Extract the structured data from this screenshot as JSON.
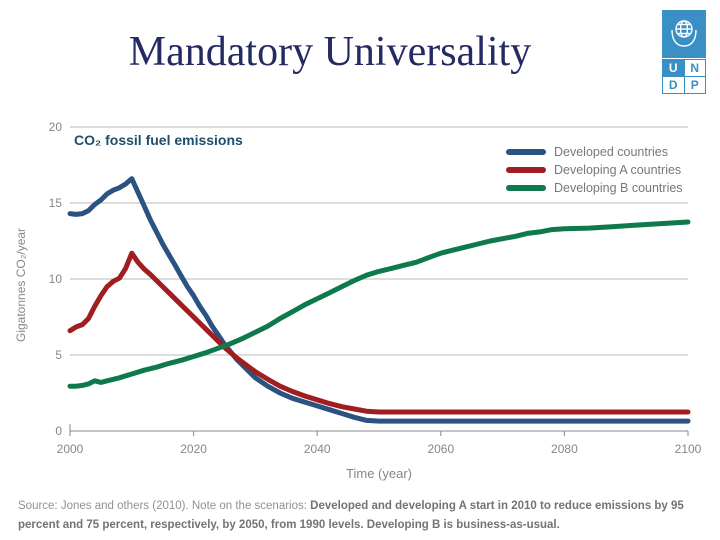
{
  "slide": {
    "title": "Mandatory Universality"
  },
  "logo": {
    "letters": [
      "U",
      "N",
      "D",
      "P"
    ],
    "color": "#3a8fc4"
  },
  "chart_data": {
    "type": "line",
    "title": "CO₂ fossil fuel emissions",
    "xlabel": "Time (year)",
    "ylabel": "Gigatonnes CO₂/year",
    "xlim": [
      2000,
      2100
    ],
    "ylim": [
      0,
      20
    ],
    "xticks": [
      2000,
      2020,
      2040,
      2060,
      2080,
      2100
    ],
    "yticks": [
      0,
      5,
      10,
      15,
      20
    ],
    "grid": true,
    "legend_position": "top-right",
    "series": [
      {
        "name": "Developed countries",
        "color": "#2a5382",
        "points": [
          [
            2000,
            14.3
          ],
          [
            2001,
            14.25
          ],
          [
            2002,
            14.3
          ],
          [
            2003,
            14.5
          ],
          [
            2004,
            14.9
          ],
          [
            2005,
            15.2
          ],
          [
            2006,
            15.6
          ],
          [
            2007,
            15.85
          ],
          [
            2008,
            16.0
          ],
          [
            2009,
            16.25
          ],
          [
            2010,
            16.6
          ],
          [
            2011,
            15.7
          ],
          [
            2012,
            14.8
          ],
          [
            2013,
            13.9
          ],
          [
            2014,
            13.1
          ],
          [
            2015,
            12.3
          ],
          [
            2016,
            11.6
          ],
          [
            2017,
            10.9
          ],
          [
            2018,
            10.2
          ],
          [
            2019,
            9.5
          ],
          [
            2020,
            8.9
          ],
          [
            2021,
            8.2
          ],
          [
            2022,
            7.6
          ],
          [
            2023,
            6.9
          ],
          [
            2024,
            6.3
          ],
          [
            2025,
            5.7
          ],
          [
            2026,
            5.2
          ],
          [
            2027,
            4.7
          ],
          [
            2028,
            4.3
          ],
          [
            2029,
            3.9
          ],
          [
            2030,
            3.5
          ],
          [
            2032,
            2.95
          ],
          [
            2034,
            2.5
          ],
          [
            2036,
            2.15
          ],
          [
            2038,
            1.9
          ],
          [
            2040,
            1.65
          ],
          [
            2042,
            1.4
          ],
          [
            2044,
            1.15
          ],
          [
            2046,
            0.9
          ],
          [
            2048,
            0.7
          ],
          [
            2050,
            0.65
          ],
          [
            2060,
            0.65
          ],
          [
            2070,
            0.65
          ],
          [
            2080,
            0.65
          ],
          [
            2090,
            0.65
          ],
          [
            2100,
            0.65
          ]
        ]
      },
      {
        "name": "Developing A countries",
        "color": "#a01d20",
        "points": [
          [
            2000,
            6.6
          ],
          [
            2001,
            6.85
          ],
          [
            2002,
            7.0
          ],
          [
            2003,
            7.4
          ],
          [
            2004,
            8.2
          ],
          [
            2005,
            8.9
          ],
          [
            2006,
            9.5
          ],
          [
            2007,
            9.85
          ],
          [
            2008,
            10.05
          ],
          [
            2009,
            10.7
          ],
          [
            2010,
            11.7
          ],
          [
            2011,
            11.1
          ],
          [
            2012,
            10.65
          ],
          [
            2013,
            10.3
          ],
          [
            2014,
            9.9
          ],
          [
            2015,
            9.5
          ],
          [
            2016,
            9.1
          ],
          [
            2017,
            8.7
          ],
          [
            2018,
            8.3
          ],
          [
            2019,
            7.9
          ],
          [
            2020,
            7.5
          ],
          [
            2021,
            7.1
          ],
          [
            2022,
            6.7
          ],
          [
            2023,
            6.3
          ],
          [
            2024,
            5.9
          ],
          [
            2025,
            5.5
          ],
          [
            2026,
            5.15
          ],
          [
            2027,
            4.8
          ],
          [
            2028,
            4.5
          ],
          [
            2029,
            4.2
          ],
          [
            2030,
            3.9
          ],
          [
            2032,
            3.4
          ],
          [
            2034,
            2.95
          ],
          [
            2036,
            2.6
          ],
          [
            2038,
            2.3
          ],
          [
            2040,
            2.05
          ],
          [
            2042,
            1.8
          ],
          [
            2044,
            1.6
          ],
          [
            2046,
            1.45
          ],
          [
            2048,
            1.3
          ],
          [
            2050,
            1.25
          ],
          [
            2060,
            1.25
          ],
          [
            2070,
            1.25
          ],
          [
            2080,
            1.25
          ],
          [
            2090,
            1.25
          ],
          [
            2100,
            1.25
          ]
        ]
      },
      {
        "name": "Developing B countries",
        "color": "#0e7a4c",
        "points": [
          [
            2000,
            2.95
          ],
          [
            2001,
            2.95
          ],
          [
            2002,
            3.0
          ],
          [
            2003,
            3.1
          ],
          [
            2004,
            3.3
          ],
          [
            2005,
            3.2
          ],
          [
            2006,
            3.3
          ],
          [
            2007,
            3.4
          ],
          [
            2008,
            3.5
          ],
          [
            2010,
            3.75
          ],
          [
            2012,
            4.0
          ],
          [
            2014,
            4.2
          ],
          [
            2016,
            4.45
          ],
          [
            2018,
            4.65
          ],
          [
            2020,
            4.9
          ],
          [
            2022,
            5.15
          ],
          [
            2024,
            5.45
          ],
          [
            2026,
            5.75
          ],
          [
            2028,
            6.1
          ],
          [
            2030,
            6.5
          ],
          [
            2032,
            6.9
          ],
          [
            2034,
            7.4
          ],
          [
            2036,
            7.85
          ],
          [
            2038,
            8.3
          ],
          [
            2040,
            8.7
          ],
          [
            2042,
            9.1
          ],
          [
            2044,
            9.5
          ],
          [
            2046,
            9.9
          ],
          [
            2048,
            10.25
          ],
          [
            2050,
            10.5
          ],
          [
            2052,
            10.7
          ],
          [
            2054,
            10.9
          ],
          [
            2056,
            11.1
          ],
          [
            2058,
            11.4
          ],
          [
            2060,
            11.7
          ],
          [
            2062,
            11.9
          ],
          [
            2064,
            12.1
          ],
          [
            2066,
            12.3
          ],
          [
            2068,
            12.5
          ],
          [
            2070,
            12.65
          ],
          [
            2072,
            12.8
          ],
          [
            2074,
            13.0
          ],
          [
            2076,
            13.1
          ],
          [
            2078,
            13.25
          ],
          [
            2080,
            13.3
          ],
          [
            2084,
            13.35
          ],
          [
            2088,
            13.45
          ],
          [
            2092,
            13.55
          ],
          [
            2096,
            13.65
          ],
          [
            2100,
            13.75
          ]
        ]
      }
    ]
  },
  "source": {
    "regular": "Source: Jones and others (2010). Note on the scenarios: ",
    "bold": "Developed and developing A start in 2010 to reduce emissions by 95 percent and 75 percent, respectively, by 2050, from 1990 levels. Developing B is business-as-usual."
  }
}
